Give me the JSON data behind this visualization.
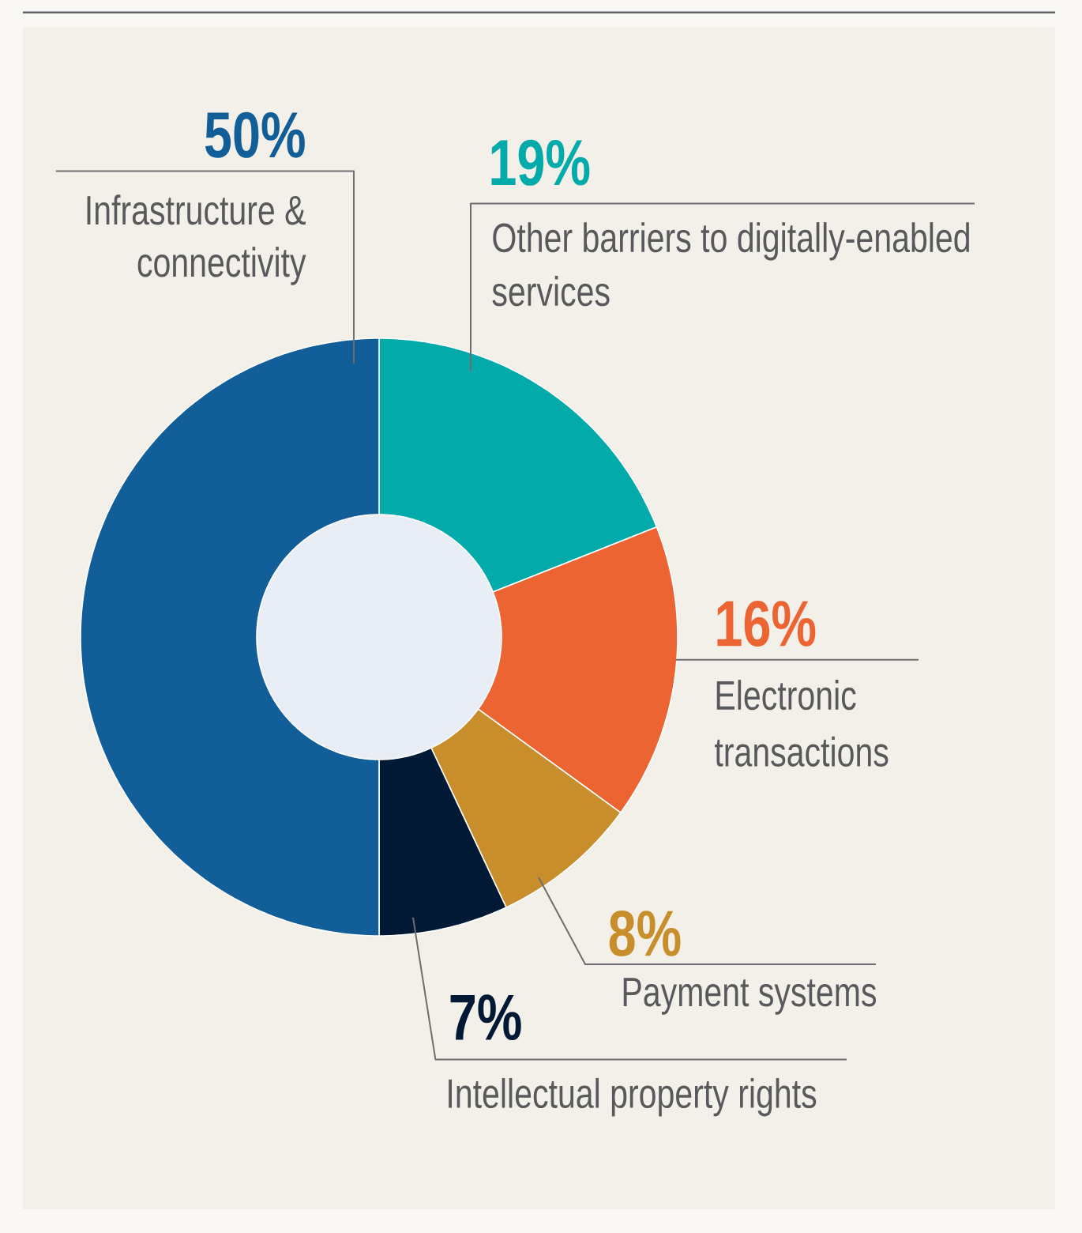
{
  "chart_data": {
    "type": "donut",
    "categories": [
      "Other barriers to digitally-enabled services",
      "Electronic transactions",
      "Payment systems",
      "Intellectual property rights",
      "Infrastructure & connectivity"
    ],
    "values": [
      19,
      16,
      8,
      7,
      50
    ],
    "value_labels": [
      "19%",
      "16%",
      "8%",
      "7%",
      "50%"
    ],
    "colors": [
      "#02aaaa",
      "#eb6432",
      "#c98e2c",
      "#021935",
      "#115e99"
    ]
  }
}
